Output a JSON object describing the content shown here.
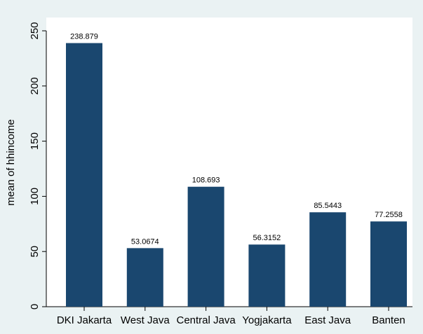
{
  "chart_data": {
    "type": "bar",
    "title": "",
    "xlabel": "",
    "ylabel": "mean of hhincome",
    "categories": [
      "DKI Jakarta",
      "West Java",
      "Central Java",
      "Yogjakarta",
      "East Java",
      "Banten"
    ],
    "values": [
      238.879,
      53.0674,
      108.693,
      56.3152,
      85.5443,
      77.2558
    ],
    "value_labels": [
      "238.879",
      "53.0674",
      "108.693",
      "56.3152",
      "85.5443",
      "77.2558"
    ],
    "yticks": [
      0,
      50,
      100,
      150,
      200,
      250
    ],
    "ylim": [
      0,
      250
    ],
    "grid": false,
    "legend": "none"
  },
  "colors": {
    "outer_background": "#eaf2f3",
    "plot_background": "#ffffff",
    "bar_fill": "#1a476f",
    "axis": "#000000"
  }
}
